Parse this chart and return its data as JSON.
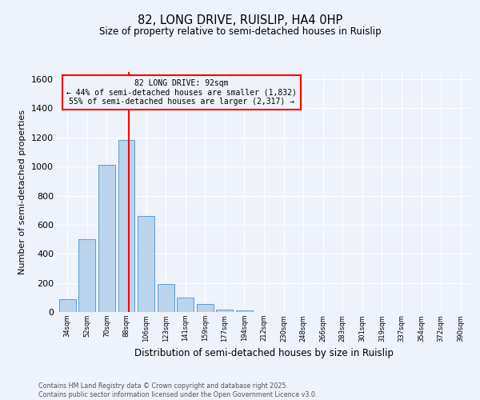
{
  "title": "82, LONG DRIVE, RUISLIP, HA4 0HP",
  "subtitle": "Size of property relative to semi-detached houses in Ruislip",
  "xlabel": "Distribution of semi-detached houses by size in Ruislip",
  "ylabel": "Number of semi-detached properties",
  "bin_labels": [
    "34sqm",
    "52sqm",
    "70sqm",
    "88sqm",
    "106sqm",
    "123sqm",
    "141sqm",
    "159sqm",
    "177sqm",
    "194sqm",
    "212sqm",
    "230sqm",
    "248sqm",
    "266sqm",
    "283sqm",
    "301sqm",
    "319sqm",
    "337sqm",
    "354sqm",
    "372sqm",
    "390sqm"
  ],
  "counts": [
    90,
    500,
    1010,
    1180,
    660,
    190,
    100,
    55,
    15,
    10,
    0,
    0,
    0,
    0,
    0,
    0,
    0,
    0,
    0,
    0,
    0
  ],
  "bar_color": "#bad4ed",
  "bar_edge_color": "#5b9bd5",
  "vline_x_idx": 3,
  "vline_color": "red",
  "annotation_title": "82 LONG DRIVE: 92sqm",
  "annotation_line1": "← 44% of semi-detached houses are smaller (1,832)",
  "annotation_line2": "55% of semi-detached houses are larger (2,317) →",
  "annotation_box_color": "red",
  "ylim": [
    0,
    1650
  ],
  "yticks": [
    0,
    200,
    400,
    600,
    800,
    1000,
    1200,
    1400,
    1600
  ],
  "background_color": "#eef2fb",
  "grid_color": "#ffffff",
  "footer1": "Contains HM Land Registry data © Crown copyright and database right 2025.",
  "footer2": "Contains public sector information licensed under the Open Government Licence v3.0."
}
